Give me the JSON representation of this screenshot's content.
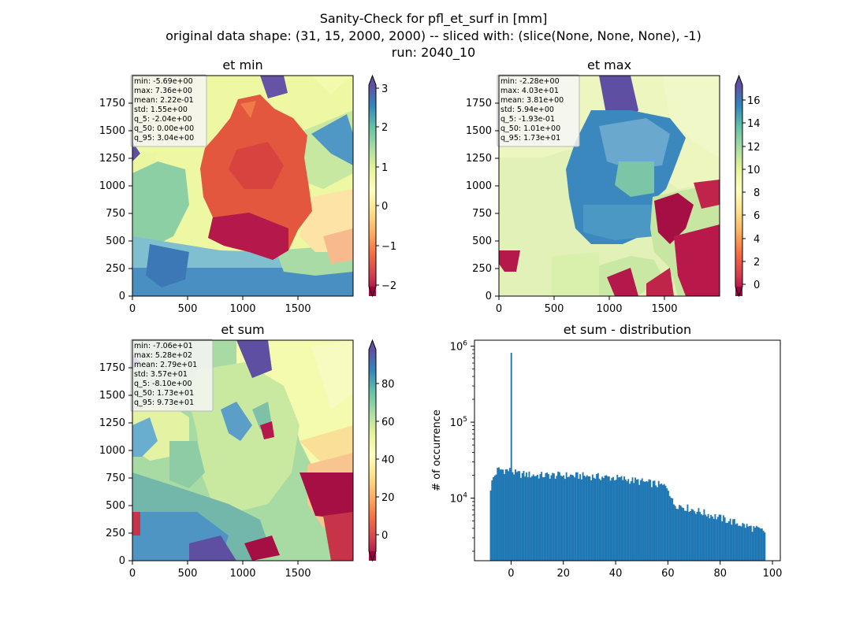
{
  "figure": {
    "title_lines": [
      "Sanity-Check for pfl_et_surf in [mm]",
      "original data shape: (31, 15, 2000, 2000) -- sliced with: (slice(None, None, None), -1)",
      "run: 2040_10"
    ]
  },
  "chart_data": [
    {
      "type": "heatmap",
      "title": "et min",
      "colormap": "Spectral",
      "xlim": [
        0,
        2000
      ],
      "ylim": [
        0,
        2000
      ],
      "xticks": [
        "0",
        "500",
        "1000",
        "1500"
      ],
      "yticks": [
        "0",
        "250",
        "500",
        "750",
        "1000",
        "1250",
        "1500",
        "1750"
      ],
      "colorbar": {
        "range": [
          -2.2,
          3.1
        ],
        "ticks": [
          "−2",
          "−1",
          "0",
          "1",
          "2",
          "3"
        ],
        "extend": "both"
      },
      "stats": [
        "min: -5.69e+00",
        "max: 7.36e+00",
        "mean: 2.22e-01",
        "std: 1.55e+00",
        "q_5: -2.04e+00",
        "q_50: 0.00e+00",
        "q_95: 3.04e+00"
      ]
    },
    {
      "type": "heatmap",
      "title": "et max",
      "colormap": "Spectral",
      "xlim": [
        0,
        2000
      ],
      "ylim": [
        0,
        2000
      ],
      "xticks": [
        "0",
        "500",
        "1000",
        "1500"
      ],
      "yticks": [
        "0",
        "250",
        "500",
        "750",
        "1000",
        "1250",
        "1500",
        "1750"
      ],
      "colorbar": {
        "range": [
          -0.5,
          17.3
        ],
        "ticks": [
          "0",
          "2",
          "4",
          "6",
          "8",
          "10",
          "12",
          "14",
          "16"
        ],
        "extend": "both"
      },
      "stats": [
        "min: -2.28e+00",
        "max: 4.03e+01",
        "mean: 3.81e+00",
        "std: 5.94e+00",
        "q_5: -1.93e-01",
        "q_50: 1.01e+00",
        "q_95: 1.73e+01"
      ]
    },
    {
      "type": "heatmap",
      "title": "et sum",
      "colormap": "Spectral",
      "xlim": [
        0,
        2000
      ],
      "ylim": [
        0,
        2000
      ],
      "xticks": [
        "0",
        "500",
        "1000",
        "1500"
      ],
      "yticks": [
        "0",
        "250",
        "500",
        "750",
        "1000",
        "1250",
        "1500",
        "1750"
      ],
      "colorbar": {
        "range": [
          -8.1,
          97.3
        ],
        "ticks": [
          "0",
          "20",
          "40",
          "60",
          "80"
        ],
        "extend": "both"
      },
      "stats": [
        "min: -7.06e+01",
        "max: 5.28e+02",
        "mean: 2.79e+01",
        "std: 3.57e+01",
        "q_5: -8.10e+00",
        "q_50: 1.73e+01",
        "q_95: 9.73e+01"
      ]
    },
    {
      "type": "bar",
      "title": "et sum - distribution",
      "ylabel": "# of occurrence",
      "yscale": "log",
      "bar_color": "#1f77b4",
      "xlim": [
        -14,
        103
      ],
      "ylim": [
        1500,
        1200000
      ],
      "xticks": [
        0,
        20,
        40,
        60,
        80,
        100
      ],
      "yticks": [
        {
          "value": 10000,
          "base": "10",
          "exp": "4"
        },
        {
          "value": 100000,
          "base": "10",
          "exp": "5"
        },
        {
          "value": 1000000,
          "base": "10",
          "exp": "6"
        }
      ],
      "bin_range": [
        -8.1,
        97.3
      ],
      "spike": {
        "x": 0,
        "y": 820000
      },
      "profile_x": [
        -8.1,
        -7,
        -5,
        0,
        2,
        10,
        20,
        30,
        40,
        50,
        55,
        60,
        62,
        70,
        80,
        90,
        97.3
      ],
      "profile_y": [
        12500,
        18000,
        24000,
        23000,
        21000,
        20000,
        20000,
        19500,
        18500,
        16500,
        15500,
        14000,
        8500,
        7000,
        5500,
        4300,
        3600
      ]
    }
  ]
}
